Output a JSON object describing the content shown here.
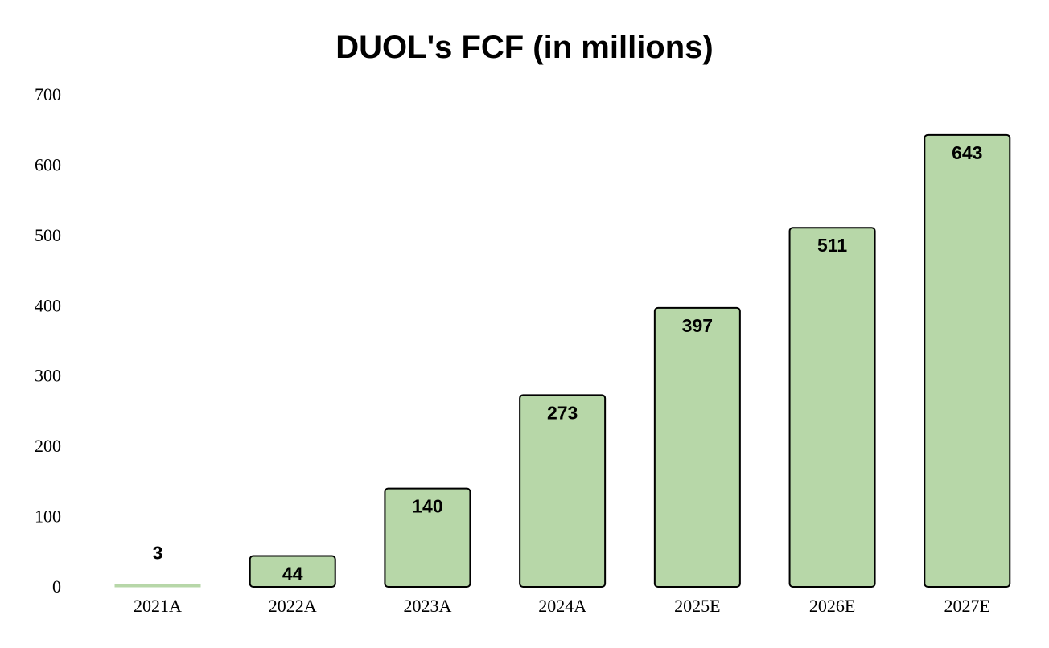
{
  "chart_data": {
    "type": "bar",
    "title": "DUOL's FCF (in millions)",
    "xlabel": "",
    "ylabel": "",
    "categories": [
      "2021A",
      "2022A",
      "2023A",
      "2024A",
      "2025E",
      "2026E",
      "2027E"
    ],
    "values": [
      3,
      44,
      140,
      273,
      397,
      511,
      643
    ],
    "data_labels": [
      "3",
      "44",
      "140",
      "273",
      "397",
      "511",
      "643"
    ],
    "ylim": [
      0,
      700
    ],
    "yticks": [
      0,
      100,
      200,
      300,
      400,
      500,
      600,
      700
    ],
    "ytick_labels": [
      "0",
      "100",
      "200",
      "300",
      "400",
      "500",
      "600",
      "700"
    ],
    "grid": false,
    "legend": "none",
    "colors": {
      "bar_fill": "#b7d7a8",
      "bar_stroke": "#000000",
      "text": "#000000"
    }
  }
}
